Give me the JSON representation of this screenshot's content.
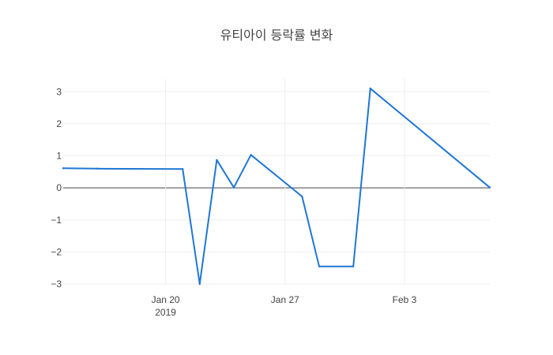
{
  "chart_data": {
    "type": "line",
    "title": "유티아이 등락률 변화",
    "xlabel": "",
    "ylabel": "",
    "x_axis": {
      "type": "date",
      "range": [
        "2019-01-14",
        "2019-02-08"
      ],
      "ticks": [
        {
          "date": "2019-01-20",
          "label": "Jan 20",
          "sublabel": "2019"
        },
        {
          "date": "2019-01-27",
          "label": "Jan 27",
          "sublabel": ""
        },
        {
          "date": "2019-02-03",
          "label": "Feb 3",
          "sublabel": ""
        }
      ]
    },
    "y_axis": {
      "range": [
        -3.0,
        3.4
      ],
      "ticks": [
        {
          "value": 3,
          "label": "3"
        },
        {
          "value": 2,
          "label": "2"
        },
        {
          "value": 1,
          "label": "1"
        },
        {
          "value": 0,
          "label": "0"
        },
        {
          "value": -1,
          "label": "−1"
        },
        {
          "value": -2,
          "label": "−2"
        },
        {
          "value": -3,
          "label": "−3"
        }
      ]
    },
    "grid": true,
    "zero_line": true,
    "series": [
      {
        "color": "#1f77d4",
        "points": [
          {
            "x": "2019-01-14",
            "y": 0.61
          },
          {
            "x": "2019-01-16",
            "y": 0.6
          },
          {
            "x": "2019-01-21",
            "y": 0.59
          },
          {
            "x": "2019-01-22",
            "y": -3.0
          },
          {
            "x": "2019-01-23",
            "y": 0.87
          },
          {
            "x": "2019-01-24",
            "y": 0.01
          },
          {
            "x": "2019-01-25",
            "y": 1.03
          },
          {
            "x": "2019-01-28",
            "y": -0.27
          },
          {
            "x": "2019-01-29",
            "y": -2.45
          },
          {
            "x": "2019-01-31",
            "y": -2.45
          },
          {
            "x": "2019-02-01",
            "y": 3.1
          },
          {
            "x": "2019-02-08",
            "y": 0.01
          }
        ]
      }
    ]
  }
}
